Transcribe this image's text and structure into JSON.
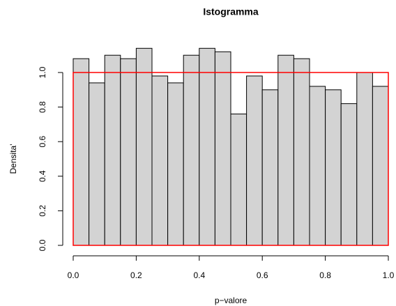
{
  "chart_data": {
    "type": "histogram",
    "title": "Istogramma",
    "x_label": "p−valore",
    "y_label": "Densita'",
    "bins": [
      0,
      0.05,
      0.1,
      0.15,
      0.2,
      0.25,
      0.3,
      0.35,
      0.4,
      0.45,
      0.5,
      0.55,
      0.6,
      0.65,
      0.7,
      0.75,
      0.8,
      0.85,
      0.9,
      0.95,
      1
    ],
    "values": [
      1.08,
      0.94,
      1.1,
      1.08,
      1.14,
      0.98,
      0.94,
      1.1,
      1.14,
      1.12,
      0.76,
      0.98,
      0.9,
      1.1,
      1.08,
      0.92,
      0.9,
      0.82,
      1.0,
      0.92
    ],
    "color": "#d3d3d3",
    "reference_density": 1,
    "reference_color": "#ff0000",
    "xlim": [
      0,
      1
    ],
    "ylim": [
      0,
      1.14
    ],
    "xticks": [
      {
        "value": 0,
        "label": "0.0"
      },
      0.2,
      0.4,
      0.6,
      0.8,
      {
        "value": 1,
        "label": "1.0"
      }
    ],
    "yticks": [
      {
        "value": 0,
        "label": "0.0"
      },
      0.2,
      0.4,
      0.6,
      0.8,
      {
        "value": 1,
        "label": "1.0"
      }
    ]
  }
}
